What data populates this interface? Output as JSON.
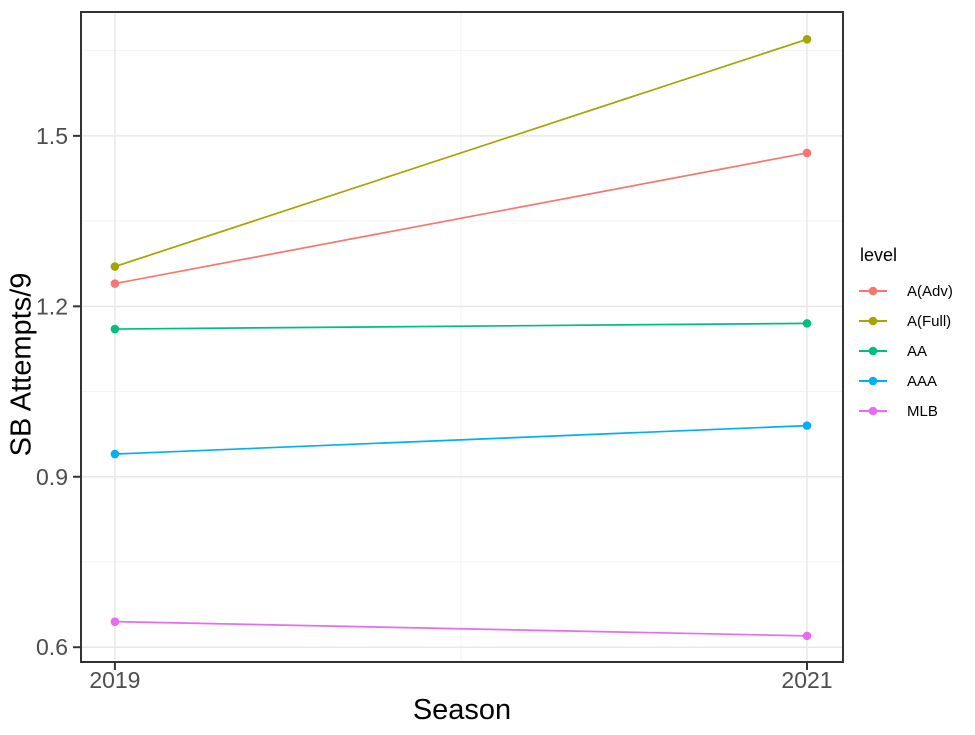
{
  "figure": {
    "background": "#FFFFFF",
    "panel_background": "#FFFFFF",
    "panel_border_color": "#333333",
    "grid_major_color": "#E8E8E8",
    "grid_minor_color": "#F3F3F3",
    "tick_color": "#333333",
    "tick_label_color": "#4D4D4D",
    "axis_title_color": "#000000"
  },
  "chart_data": {
    "type": "line",
    "title": "",
    "xlabel": "Season",
    "ylabel": "SB Attempts/9",
    "legend_title": "level",
    "legend_position": "right",
    "grid": true,
    "x": [
      2019,
      2021
    ],
    "x_tick_labels": [
      "2019",
      "2021"
    ],
    "x_minor_ticks": [
      2020
    ],
    "y_ticks_major": [
      0.6,
      0.9,
      1.2,
      1.5
    ],
    "y_tick_labels": [
      "0.6",
      "0.9",
      "1.2",
      "1.5"
    ],
    "y_ticks_minor": [
      0.75,
      1.05,
      1.35,
      1.65
    ],
    "xlim": [
      2018.902,
      2021.104
    ],
    "ylim": [
      0.574,
      1.718
    ],
    "series": [
      {
        "name": "A(Adv)",
        "color": "#F8766D",
        "values": [
          1.24,
          1.47
        ]
      },
      {
        "name": "A(Full)",
        "color": "#A3A500",
        "values": [
          1.27,
          1.67
        ]
      },
      {
        "name": "AA",
        "color": "#00BF7D",
        "values": [
          1.16,
          1.17
        ]
      },
      {
        "name": "AAA",
        "color": "#00B0F6",
        "values": [
          0.94,
          0.99
        ]
      },
      {
        "name": "MLB",
        "color": "#E76BF3",
        "values": [
          0.645,
          0.62
        ]
      }
    ]
  }
}
